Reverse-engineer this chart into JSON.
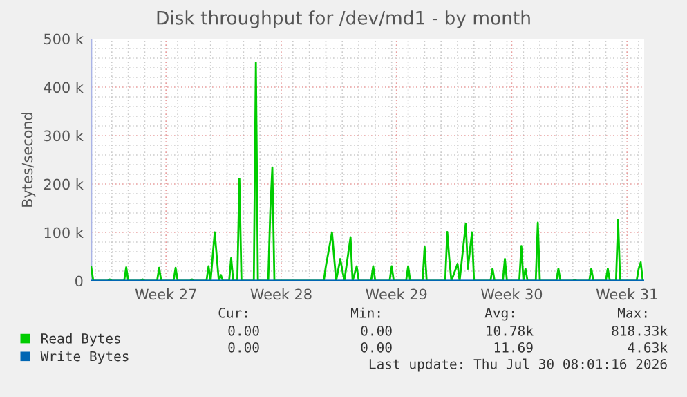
{
  "chart_data": {
    "type": "line",
    "title": "Disk throughput for /dev/md1 - by month",
    "ylabel": "Bytes/second",
    "xlim": [
      "2026-06-26T18:00",
      "2026-07-30T08:00"
    ],
    "xticks": [
      {
        "value": "2026-07-01T07:00",
        "label": "Week 27"
      },
      {
        "value": "2026-07-08T07:00",
        "label": "Week 28"
      },
      {
        "value": "2026-07-15T07:00",
        "label": "Week 29"
      },
      {
        "value": "2026-07-22T07:00",
        "label": "Week 30"
      },
      {
        "value": "2026-07-29T07:00",
        "label": "Week 31"
      }
    ],
    "ylim": [
      0,
      500000
    ],
    "yticks": [
      {
        "value": 0,
        "label": "0"
      },
      {
        "value": 100000,
        "label": "100 k"
      },
      {
        "value": 200000,
        "label": "200 k"
      },
      {
        "value": 300000,
        "label": "300 k"
      },
      {
        "value": 400000,
        "label": "400 k"
      },
      {
        "value": 500000,
        "label": "500 k"
      }
    ],
    "grid": true,
    "legend": "bottom",
    "marker": "none",
    "line_style": "solid",
    "series": [
      {
        "name": "Read Bytes",
        "color": "#00cc00",
        "x": [
          "2026-06-26T18:00",
          "2026-06-26T21:00",
          "2026-06-27T18:00",
          "2026-06-27T21:00",
          "2026-06-28T00:00",
          "2026-06-28T18:00",
          "2026-06-28T21:00",
          "2026-06-29T00:00",
          "2026-06-29T18:00",
          "2026-06-29T21:00",
          "2026-06-30T00:00",
          "2026-06-30T18:00",
          "2026-06-30T21:00",
          "2026-07-01T00:00",
          "2026-07-01T18:00",
          "2026-07-01T21:00",
          "2026-07-02T00:00",
          "2026-07-02T18:00",
          "2026-07-02T21:00",
          "2026-07-03T00:00",
          "2026-07-03T18:00",
          "2026-07-03T21:00",
          "2026-07-04T00:00",
          "2026-07-04T06:00",
          "2026-07-04T12:00",
          "2026-07-04T15:00",
          "2026-07-04T18:00",
          "2026-07-05T03:00",
          "2026-07-05T06:00",
          "2026-07-05T09:00",
          "2026-07-05T15:00",
          "2026-07-05T18:00",
          "2026-07-05T21:00",
          "2026-07-06T15:00",
          "2026-07-06T18:00",
          "2026-07-06T21:00",
          "2026-07-07T12:00",
          "2026-07-07T15:00",
          "2026-07-07T18:00",
          "2026-07-07T21:00",
          "2026-07-10T21:00",
          "2026-07-11T00:00",
          "2026-07-11T09:00",
          "2026-07-11T15:00",
          "2026-07-11T21:00",
          "2026-07-12T03:00",
          "2026-07-12T12:00",
          "2026-07-12T15:00",
          "2026-07-12T21:00",
          "2026-07-13T00:00",
          "2026-07-13T18:00",
          "2026-07-13T21:00",
          "2026-07-14T00:00",
          "2026-07-14T21:00",
          "2026-07-15T00:00",
          "2026-07-15T03:00",
          "2026-07-15T21:00",
          "2026-07-16T00:00",
          "2026-07-16T03:00",
          "2026-07-16T21:00",
          "2026-07-17T00:00",
          "2026-07-17T03:00",
          "2026-07-18T06:00",
          "2026-07-18T09:00",
          "2026-07-18T12:00",
          "2026-07-18T15:00",
          "2026-07-19T00:00",
          "2026-07-19T03:00",
          "2026-07-19T12:00",
          "2026-07-19T15:00",
          "2026-07-19T21:00",
          "2026-07-20T00:00",
          "2026-07-21T00:00",
          "2026-07-21T03:00",
          "2026-07-21T06:00",
          "2026-07-21T18:00",
          "2026-07-21T21:00",
          "2026-07-22T00:00",
          "2026-07-22T18:00",
          "2026-07-22T21:00",
          "2026-07-23T00:00",
          "2026-07-23T03:00",
          "2026-07-23T06:00",
          "2026-07-23T18:00",
          "2026-07-23T21:00",
          "2026-07-24T00:00",
          "2026-07-25T00:00",
          "2026-07-25T03:00",
          "2026-07-25T06:00",
          "2026-07-26T00:00",
          "2026-07-26T03:00",
          "2026-07-26T06:00",
          "2026-07-27T00:00",
          "2026-07-27T03:00",
          "2026-07-27T06:00",
          "2026-07-28T00:00",
          "2026-07-28T03:00",
          "2026-07-28T06:00",
          "2026-07-28T15:00",
          "2026-07-28T18:00",
          "2026-07-28T21:00",
          "2026-07-29T21:00",
          "2026-07-30T00:00",
          "2026-07-30T03:00",
          "2026-07-30T06:00"
        ],
        "values": [
          28000,
          0,
          0,
          3000,
          0,
          0,
          28000,
          0,
          0,
          3000,
          0,
          0,
          27000,
          0,
          0,
          27000,
          0,
          0,
          3000,
          0,
          0,
          30000,
          0,
          100000,
          0,
          12000,
          0,
          0,
          47000,
          0,
          0,
          211000,
          0,
          0,
          451000,
          0,
          0,
          143000,
          234000,
          0,
          0,
          30000,
          100000,
          0,
          45000,
          0,
          90000,
          0,
          30000,
          0,
          0,
          30000,
          0,
          0,
          30000,
          0,
          0,
          30000,
          0,
          0,
          70000,
          0,
          0,
          101000,
          45000,
          0,
          35000,
          0,
          118000,
          25000,
          100000,
          0,
          0,
          25000,
          0,
          0,
          45000,
          0,
          0,
          72000,
          0,
          25000,
          0,
          0,
          120000,
          0,
          0,
          25000,
          0,
          0,
          2000,
          0,
          0,
          25000,
          0,
          0,
          25000,
          0,
          0,
          126000,
          0,
          0,
          25000,
          38000,
          0
        ]
      },
      {
        "name": "Write Bytes",
        "color": "#0066b3",
        "x": [
          "2026-06-26T18:00",
          "2026-07-30T08:00"
        ],
        "values": [
          0,
          0
        ]
      }
    ],
    "annotations": [
      "Cur:",
      "Min:",
      "Avg:",
      "Max:",
      "0.00",
      "0.00",
      "10.78k",
      "818.33k",
      "0.00",
      "0.00",
      "11.69",
      "4.63k",
      "Last update: Thu Jul 30 08:01:16 2026"
    ]
  }
}
